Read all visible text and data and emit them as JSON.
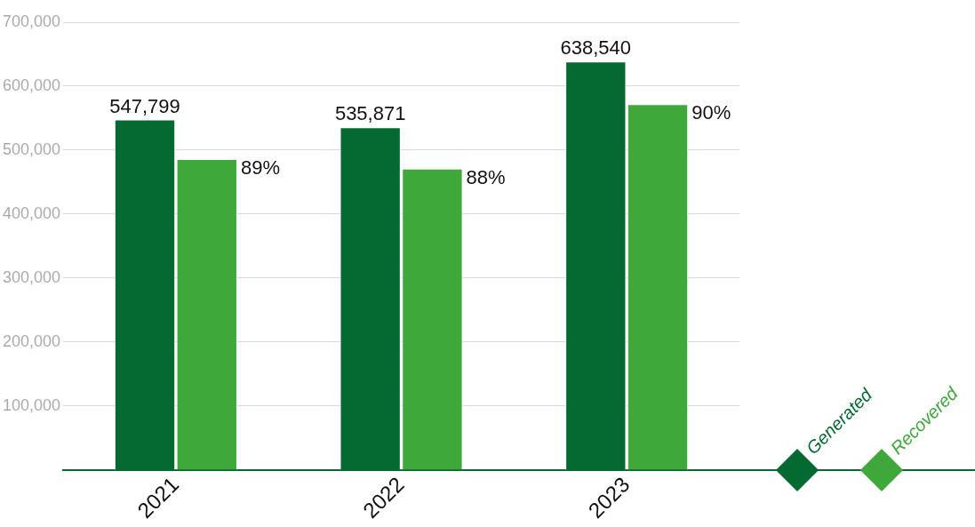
{
  "chart_data": {
    "type": "bar",
    "categories": [
      "2021",
      "2022",
      "2023"
    ],
    "series": [
      {
        "name": "Generated",
        "color": "#056a32",
        "values": [
          547799,
          535871,
          638540
        ],
        "value_labels": [
          "547,799",
          "535,871",
          "638,540"
        ]
      },
      {
        "name": "Recovered",
        "color": "#3ea83a",
        "values": [
          486000,
          471000,
          572000
        ]
      }
    ],
    "ylim": [
      0,
      700000
    ],
    "yticks": [
      {
        "value": 0,
        "label": null
      },
      {
        "value": 100000,
        "label": "100,000"
      },
      {
        "value": 200000,
        "label": "200,000"
      },
      {
        "value": 300000,
        "label": "300,000"
      },
      {
        "value": 400000,
        "label": "400,000"
      },
      {
        "value": 500000,
        "label": "500,000"
      },
      {
        "value": 600000,
        "label": "600,000"
      },
      {
        "value": 700000,
        "label": "700,000"
      }
    ],
    "annotations": [
      "89%",
      "88%",
      "90%"
    ],
    "grid": "y",
    "legend": "bottom right"
  }
}
